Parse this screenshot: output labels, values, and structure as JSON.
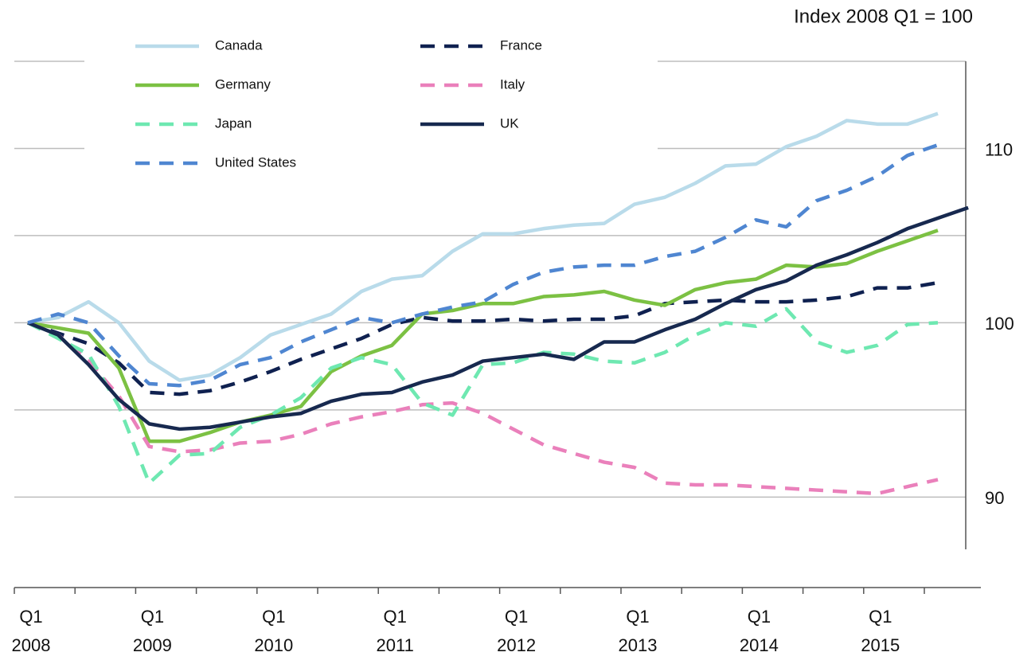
{
  "chart_data": {
    "type": "line",
    "title": "Index 2008 Q1 = 100",
    "categories": [
      "Q1\n2008",
      null,
      null,
      null,
      "Q1\n2009",
      null,
      null,
      null,
      "Q1\n2010",
      null,
      null,
      null,
      "Q1\n2011",
      null,
      null,
      null,
      "Q1\n2012",
      null,
      null,
      null,
      "Q1\n2013",
      null,
      null,
      null,
      "Q1\n2014",
      null,
      null,
      null,
      "Q1\n2015",
      null,
      null,
      null
    ],
    "ylim": [
      87,
      115
    ],
    "yticks": [
      90,
      100,
      110
    ],
    "minor_yticks": [
      95,
      105,
      115
    ],
    "grid": true,
    "legend": "top-left",
    "series": [
      {
        "name": "Canada",
        "color": "#b9dbea",
        "dashed": false,
        "values": [
          100,
          100.3,
          101.2,
          100.0,
          97.8,
          96.7,
          97.0,
          98.0,
          99.3,
          99.9,
          100.5,
          101.8,
          102.5,
          102.7,
          104.1,
          105.1,
          105.1,
          105.4,
          105.6,
          105.7,
          106.8,
          107.2,
          108.0,
          109.0,
          109.1,
          110.1,
          110.7,
          111.6,
          111.4,
          111.4,
          112.0,
          null
        ]
      },
      {
        "name": "France",
        "color": "#0f2150",
        "dashed": true,
        "values": [
          100,
          99.4,
          98.8,
          97.7,
          96.0,
          95.9,
          96.1,
          96.6,
          97.2,
          97.9,
          98.5,
          99.1,
          99.9,
          100.3,
          100.1,
          100.1,
          100.2,
          100.1,
          100.2,
          100.2,
          100.4,
          101.1,
          101.2,
          101.3,
          101.2,
          101.2,
          101.3,
          101.5,
          102.0,
          102.0,
          102.3,
          null
        ]
      },
      {
        "name": "Germany",
        "color": "#7cc143",
        "dashed": false,
        "values": [
          100,
          99.7,
          99.4,
          97.4,
          93.2,
          93.2,
          93.7,
          94.3,
          94.7,
          95.2,
          97.2,
          98.1,
          98.7,
          100.5,
          100.7,
          101.1,
          101.1,
          101.5,
          101.6,
          101.8,
          101.3,
          101.0,
          101.9,
          102.3,
          102.5,
          103.3,
          103.2,
          103.4,
          104.1,
          104.7,
          105.3,
          null
        ]
      },
      {
        "name": "Italy",
        "color": "#ea80bb",
        "dashed": true,
        "values": [
          100,
          99.3,
          97.8,
          95.8,
          92.9,
          92.6,
          92.7,
          93.1,
          93.2,
          93.6,
          94.2,
          94.6,
          94.9,
          95.3,
          95.4,
          94.8,
          93.9,
          93.0,
          92.5,
          92.0,
          91.7,
          90.8,
          90.7,
          90.7,
          90.6,
          90.5,
          90.4,
          90.3,
          90.2,
          90.6,
          91.0,
          null
        ]
      },
      {
        "name": "Japan",
        "color": "#6ee8b1",
        "dashed": true,
        "values": [
          100,
          99.1,
          98.2,
          95.2,
          90.8,
          92.4,
          92.5,
          94.0,
          94.7,
          95.7,
          97.4,
          98.0,
          97.6,
          95.4,
          94.7,
          97.6,
          97.7,
          98.3,
          98.2,
          97.8,
          97.7,
          98.3,
          99.3,
          100.0,
          99.8,
          100.8,
          98.9,
          98.3,
          98.7,
          99.9,
          100.0,
          null
        ]
      },
      {
        "name": "UK",
        "color": "#17294f",
        "dashed": false,
        "values": [
          100,
          99.3,
          97.6,
          95.6,
          94.2,
          93.9,
          94.0,
          94.3,
          94.6,
          94.8,
          95.5,
          95.9,
          96.0,
          96.6,
          97.0,
          97.8,
          98.0,
          98.2,
          97.9,
          98.9,
          98.9,
          99.6,
          100.2,
          101.1,
          101.9,
          102.4,
          103.3,
          103.9,
          104.6,
          105.4,
          106.0,
          106.6
        ]
      },
      {
        "name": "United States",
        "color": "#4f86d1",
        "dashed": true,
        "values": [
          100,
          100.5,
          100.0,
          98.1,
          96.5,
          96.4,
          96.7,
          97.6,
          98.0,
          98.9,
          99.6,
          100.3,
          100.0,
          100.5,
          100.9,
          101.2,
          102.2,
          102.9,
          103.2,
          103.3,
          103.3,
          103.8,
          104.1,
          104.9,
          105.9,
          105.5,
          107.0,
          107.6,
          108.4,
          109.6,
          110.2,
          null
        ]
      }
    ]
  }
}
